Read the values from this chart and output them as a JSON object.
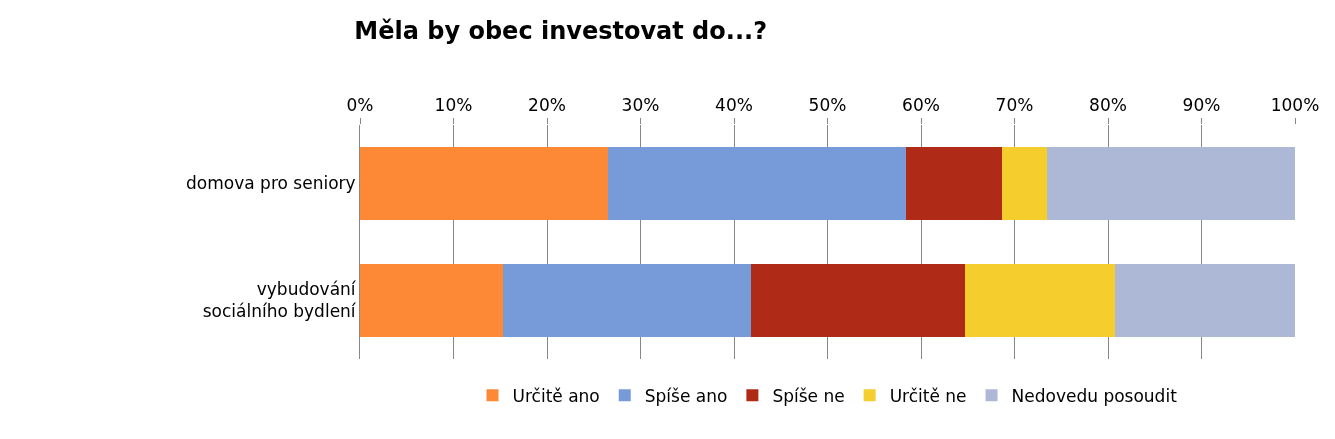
{
  "chart_data": {
    "type": "bar",
    "orientation": "horizontal",
    "stacked": true,
    "title": "Měla by obec investovat do...?",
    "categories": [
      "domova pro seniory",
      "vybudování sociálního bydlení"
    ],
    "series": [
      {
        "name": "Určitě ano",
        "color": "#fd8836",
        "values": [
          26.5,
          15.3
        ]
      },
      {
        "name": "Spíše ano",
        "color": "#779ad8",
        "values": [
          31.9,
          26.5
        ]
      },
      {
        "name": "Spíše ne",
        "color": "#b02b17",
        "values": [
          10.3,
          22.9
        ]
      },
      {
        "name": "Určitě ne",
        "color": "#f5cd2d",
        "values": [
          4.8,
          16.1
        ]
      },
      {
        "name": "Nedovedu posoudit",
        "color": "#adb8d6",
        "values": [
          26.5,
          19.2
        ]
      }
    ],
    "xlim": [
      0,
      100
    ],
    "xticks": [
      {
        "value": 0,
        "label": "0%"
      },
      {
        "value": 10,
        "label": "10%"
      },
      {
        "value": 20,
        "label": "20%"
      },
      {
        "value": 30,
        "label": "30%"
      },
      {
        "value": 40,
        "label": "40%"
      },
      {
        "value": 50,
        "label": "50%"
      },
      {
        "value": 60,
        "label": "60%"
      },
      {
        "value": 70,
        "label": "70%"
      },
      {
        "value": 80,
        "label": "80%"
      },
      {
        "value": 90,
        "label": "90%"
      },
      {
        "value": 100,
        "label": "100%"
      }
    ],
    "grid": "x",
    "legend": "bottom"
  }
}
